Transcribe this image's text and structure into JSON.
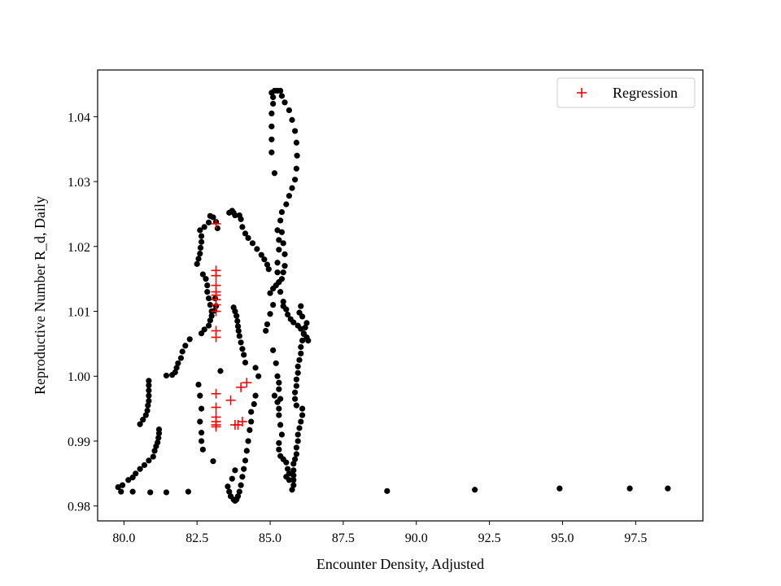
{
  "chart_data": {
    "type": "scatter",
    "title": "",
    "xlabel": "Encounter Density, Adjusted",
    "ylabel": "Reproductive Number R_d, Daily",
    "xlim": [
      79.1,
      99.8
    ],
    "ylim": [
      0.9777,
      1.0472
    ],
    "xticks": [
      80.0,
      82.5,
      85.0,
      87.5,
      90.0,
      92.5,
      95.0,
      97.5
    ],
    "xtick_labels": [
      "80.0",
      "82.5",
      "85.0",
      "87.5",
      "90.0",
      "92.5",
      "95.0",
      "97.5"
    ],
    "yticks": [
      0.98,
      0.99,
      1.0,
      1.01,
      1.02,
      1.03,
      1.04
    ],
    "ytick_labels": [
      "0.98",
      "0.99",
      "1.00",
      "1.01",
      "1.02",
      "1.03",
      "1.04"
    ],
    "grid": false,
    "legend": {
      "position": "upper-right",
      "entries": [
        "Regression"
      ]
    },
    "series": [
      {
        "marker": "circle",
        "color": "#000000",
        "points": [
          [
            79.8,
            0.9829
          ],
          [
            79.9,
            0.9822
          ],
          [
            79.95,
            0.9832
          ],
          [
            80.15,
            0.984
          ],
          [
            80.3,
            0.9844
          ],
          [
            80.4,
            0.985
          ],
          [
            80.55,
            0.9857
          ],
          [
            80.7,
            0.9863
          ],
          [
            80.85,
            0.987
          ],
          [
            81.0,
            0.9876
          ],
          [
            81.05,
            0.9885
          ],
          [
            81.1,
            0.9892
          ],
          [
            81.15,
            0.9898
          ],
          [
            81.18,
            0.9905
          ],
          [
            81.2,
            0.9912
          ],
          [
            81.2,
            0.9918
          ],
          [
            80.3,
            0.9822
          ],
          [
            80.9,
            0.9821
          ],
          [
            81.45,
            0.9821
          ],
          [
            82.2,
            0.9822
          ],
          [
            80.55,
            0.9926
          ],
          [
            80.65,
            0.9933
          ],
          [
            80.75,
            0.994
          ],
          [
            80.8,
            0.9947
          ],
          [
            80.82,
            0.9955
          ],
          [
            80.85,
            0.9962
          ],
          [
            80.85,
            0.997
          ],
          [
            80.85,
            0.9978
          ],
          [
            80.85,
            0.9986
          ],
          [
            80.85,
            0.9993
          ],
          [
            81.45,
            1.0001
          ],
          [
            81.65,
            1.0002
          ],
          [
            81.75,
            1.0006
          ],
          [
            81.8,
            1.0013
          ],
          [
            81.85,
            1.002
          ],
          [
            81.95,
            1.0028
          ],
          [
            82.0,
            1.0038
          ],
          [
            82.1,
            1.0047
          ],
          [
            82.25,
            1.0057
          ],
          [
            82.5,
            1.0173
          ],
          [
            82.55,
            1.0181
          ],
          [
            82.6,
            1.0189
          ],
          [
            82.62,
            1.0198
          ],
          [
            82.65,
            1.0207
          ],
          [
            82.65,
            1.0216
          ],
          [
            82.6,
            1.0225
          ],
          [
            82.75,
            1.023
          ],
          [
            82.9,
            1.0237
          ],
          [
            82.95,
            1.0247
          ],
          [
            83.05,
            1.0245
          ],
          [
            83.15,
            1.0238
          ],
          [
            83.2,
            1.0228
          ],
          [
            82.65,
            1.0066
          ],
          [
            82.75,
            1.0072
          ],
          [
            82.9,
            1.0078
          ],
          [
            82.95,
            1.0086
          ],
          [
            83.0,
            1.0093
          ],
          [
            83.1,
            1.0101
          ],
          [
            83.15,
            1.0108
          ],
          [
            83.12,
            1.012
          ],
          [
            82.7,
            1.0157
          ],
          [
            82.8,
            1.015
          ],
          [
            82.85,
            1.014
          ],
          [
            82.85,
            1.013
          ],
          [
            82.9,
            1.012
          ],
          [
            82.95,
            1.011
          ],
          [
            83.0,
            1.01
          ],
          [
            82.55,
            0.9987
          ],
          [
            82.6,
            0.997
          ],
          [
            82.65,
            0.995
          ],
          [
            82.6,
            0.993
          ],
          [
            82.65,
            0.9913
          ],
          [
            82.65,
            0.99
          ],
          [
            82.7,
            0.9887
          ],
          [
            83.05,
            0.9869
          ],
          [
            83.3,
            1.0008
          ],
          [
            83.6,
            1.0252
          ],
          [
            83.7,
            1.0255
          ],
          [
            83.75,
            1.0252
          ],
          [
            83.8,
            1.0248
          ],
          [
            83.95,
            1.0248
          ],
          [
            84.0,
            1.0242
          ],
          [
            84.05,
            1.023
          ],
          [
            84.15,
            1.022
          ],
          [
            84.25,
            1.0213
          ],
          [
            84.4,
            1.0205
          ],
          [
            84.55,
            1.0196
          ],
          [
            84.7,
            1.0187
          ],
          [
            84.8,
            1.018
          ],
          [
            84.9,
            1.0172
          ],
          [
            84.95,
            1.0165
          ],
          [
            83.75,
            1.0106
          ],
          [
            83.8,
            1.01
          ],
          [
            83.85,
            1.0093
          ],
          [
            83.88,
            1.0085
          ],
          [
            83.9,
            1.0077
          ],
          [
            83.92,
            1.007
          ],
          [
            83.95,
            1.0062
          ],
          [
            84.0,
            1.0052
          ],
          [
            84.05,
            1.0042
          ],
          [
            84.1,
            1.0033
          ],
          [
            84.15,
            1.0021
          ],
          [
            84.5,
            1.0013
          ],
          [
            84.6,
            1.0
          ],
          [
            84.5,
            0.997
          ],
          [
            84.45,
            0.9957
          ],
          [
            84.35,
            0.9945
          ],
          [
            84.35,
            0.993
          ],
          [
            84.3,
            0.9917
          ],
          [
            84.25,
            0.99
          ],
          [
            84.2,
            0.9885
          ],
          [
            84.15,
            0.987
          ],
          [
            84.1,
            0.9857
          ],
          [
            84.05,
            0.9845
          ],
          [
            84.0,
            0.9832
          ],
          [
            83.95,
            0.9822
          ],
          [
            83.9,
            0.9815
          ],
          [
            83.85,
            0.981
          ],
          [
            83.8,
            0.9808
          ],
          [
            83.75,
            0.981
          ],
          [
            83.65,
            0.9815
          ],
          [
            83.6,
            0.9822
          ],
          [
            83.55,
            0.983
          ],
          [
            83.7,
            0.9842
          ],
          [
            83.8,
            0.9855
          ],
          [
            84.85,
            1.007
          ],
          [
            84.9,
            1.008
          ],
          [
            85.0,
            1.0096
          ],
          [
            85.1,
            1.011
          ],
          [
            85.0,
            1.0128
          ],
          [
            85.1,
            1.0135
          ],
          [
            85.2,
            1.014
          ],
          [
            85.3,
            1.0145
          ],
          [
            85.4,
            1.015
          ],
          [
            85.45,
            1.016
          ],
          [
            85.5,
            1.017
          ],
          [
            85.5,
            1.0188
          ],
          [
            85.45,
            1.0205
          ],
          [
            85.4,
            1.0222
          ],
          [
            85.35,
            1.024
          ],
          [
            85.4,
            1.0253
          ],
          [
            85.55,
            1.0265
          ],
          [
            85.65,
            1.0278
          ],
          [
            85.75,
            1.029
          ],
          [
            85.85,
            1.0303
          ],
          [
            85.9,
            1.032
          ],
          [
            85.92,
            1.034
          ],
          [
            85.9,
            1.036
          ],
          [
            85.85,
            1.0378
          ],
          [
            85.75,
            1.0395
          ],
          [
            85.65,
            1.041
          ],
          [
            85.5,
            1.0422
          ],
          [
            85.4,
            1.0432
          ],
          [
            85.35,
            1.044
          ],
          [
            85.25,
            1.044
          ],
          [
            85.15,
            1.044
          ],
          [
            85.05,
            1.0437
          ],
          [
            85.1,
            1.043
          ],
          [
            85.1,
            1.042
          ],
          [
            85.05,
            1.0405
          ],
          [
            85.05,
            1.0385
          ],
          [
            85.05,
            1.0365
          ],
          [
            85.05,
            1.0345
          ],
          [
            85.15,
            1.0313
          ],
          [
            85.25,
            1.0225
          ],
          [
            85.3,
            1.021
          ],
          [
            85.3,
            1.0195
          ],
          [
            85.25,
            1.0175
          ],
          [
            85.25,
            1.016
          ],
          [
            85.3,
            1.0145
          ],
          [
            85.35,
            1.013
          ],
          [
            85.45,
            1.0115
          ],
          [
            85.45,
            1.0108
          ],
          [
            85.55,
            1.0103
          ],
          [
            85.6,
            1.0095
          ],
          [
            85.7,
            1.0088
          ],
          [
            85.8,
            1.0083
          ],
          [
            85.95,
            1.0078
          ],
          [
            86.05,
            1.0073
          ],
          [
            86.15,
            1.0066
          ],
          [
            86.25,
            1.006
          ],
          [
            86.3,
            1.0055
          ],
          [
            86.05,
            1.0108
          ],
          [
            86.0,
            1.0098
          ],
          [
            86.1,
            1.0092
          ],
          [
            86.25,
            1.0082
          ],
          [
            86.2,
            1.0075
          ],
          [
            86.15,
            1.0065
          ],
          [
            86.1,
            1.0055
          ],
          [
            86.05,
            1.0045
          ],
          [
            86.05,
            1.0035
          ],
          [
            86.0,
            1.0025
          ],
          [
            85.95,
            1.0015
          ],
          [
            85.95,
            1.0005
          ],
          [
            85.9,
            0.9995
          ],
          [
            85.9,
            0.9985
          ],
          [
            85.85,
            0.9975
          ],
          [
            85.85,
            0.9965
          ],
          [
            85.9,
            0.9955
          ],
          [
            86.1,
            0.995
          ],
          [
            86.1,
            0.994
          ],
          [
            86.05,
            0.993
          ],
          [
            86.0,
            0.992
          ],
          [
            85.95,
            0.991
          ],
          [
            85.95,
            0.99
          ],
          [
            85.9,
            0.989
          ],
          [
            85.9,
            0.988
          ],
          [
            85.85,
            0.9872
          ],
          [
            85.8,
            0.9865
          ],
          [
            85.8,
            0.9855
          ],
          [
            85.8,
            0.9847
          ],
          [
            85.8,
            0.984
          ],
          [
            85.8,
            0.9832
          ],
          [
            85.75,
            0.9825
          ],
          [
            85.65,
            0.984
          ],
          [
            85.1,
            1.004
          ],
          [
            85.2,
            1.002
          ],
          [
            85.25,
            1.0
          ],
          [
            85.3,
            0.999
          ],
          [
            85.3,
            0.998
          ],
          [
            85.35,
            0.9965
          ],
          [
            85.3,
            0.995
          ],
          [
            85.3,
            0.994
          ],
          [
            85.35,
            0.9925
          ],
          [
            85.4,
            0.991
          ],
          [
            85.3,
            0.9897
          ],
          [
            85.3,
            0.9887
          ],
          [
            85.35,
            0.9877
          ],
          [
            85.45,
            0.9872
          ],
          [
            85.55,
            0.9867
          ],
          [
            85.6,
            0.9857
          ],
          [
            85.65,
            0.985
          ],
          [
            85.55,
            0.9845
          ],
          [
            85.15,
            0.997
          ],
          [
            85.25,
            0.996
          ],
          [
            89.0,
            0.9823
          ],
          [
            92.0,
            0.9825
          ],
          [
            94.9,
            0.9827
          ],
          [
            97.3,
            0.9827
          ],
          [
            98.6,
            0.9827
          ]
        ]
      },
      {
        "name": "Regression",
        "marker": "plus",
        "color": "#ff0000",
        "points": [
          [
            83.15,
            1.0235
          ],
          [
            83.15,
            1.0163
          ],
          [
            83.15,
            1.0155
          ],
          [
            83.15,
            1.014
          ],
          [
            83.15,
            1.013
          ],
          [
            83.15,
            1.0125
          ],
          [
            83.15,
            1.0118
          ],
          [
            83.15,
            1.011
          ],
          [
            83.15,
            1.01
          ],
          [
            83.15,
            1.007
          ],
          [
            83.15,
            1.006
          ],
          [
            83.15,
            0.9973
          ],
          [
            83.15,
            0.9952
          ],
          [
            83.15,
            0.9937
          ],
          [
            83.15,
            0.993
          ],
          [
            83.15,
            0.9925
          ],
          [
            83.15,
            0.9922
          ],
          [
            83.65,
            0.9963
          ],
          [
            84.0,
            0.9983
          ],
          [
            84.2,
            0.999
          ],
          [
            83.8,
            0.9925
          ],
          [
            83.9,
            0.9925
          ],
          [
            84.05,
            0.993
          ]
        ]
      }
    ]
  }
}
